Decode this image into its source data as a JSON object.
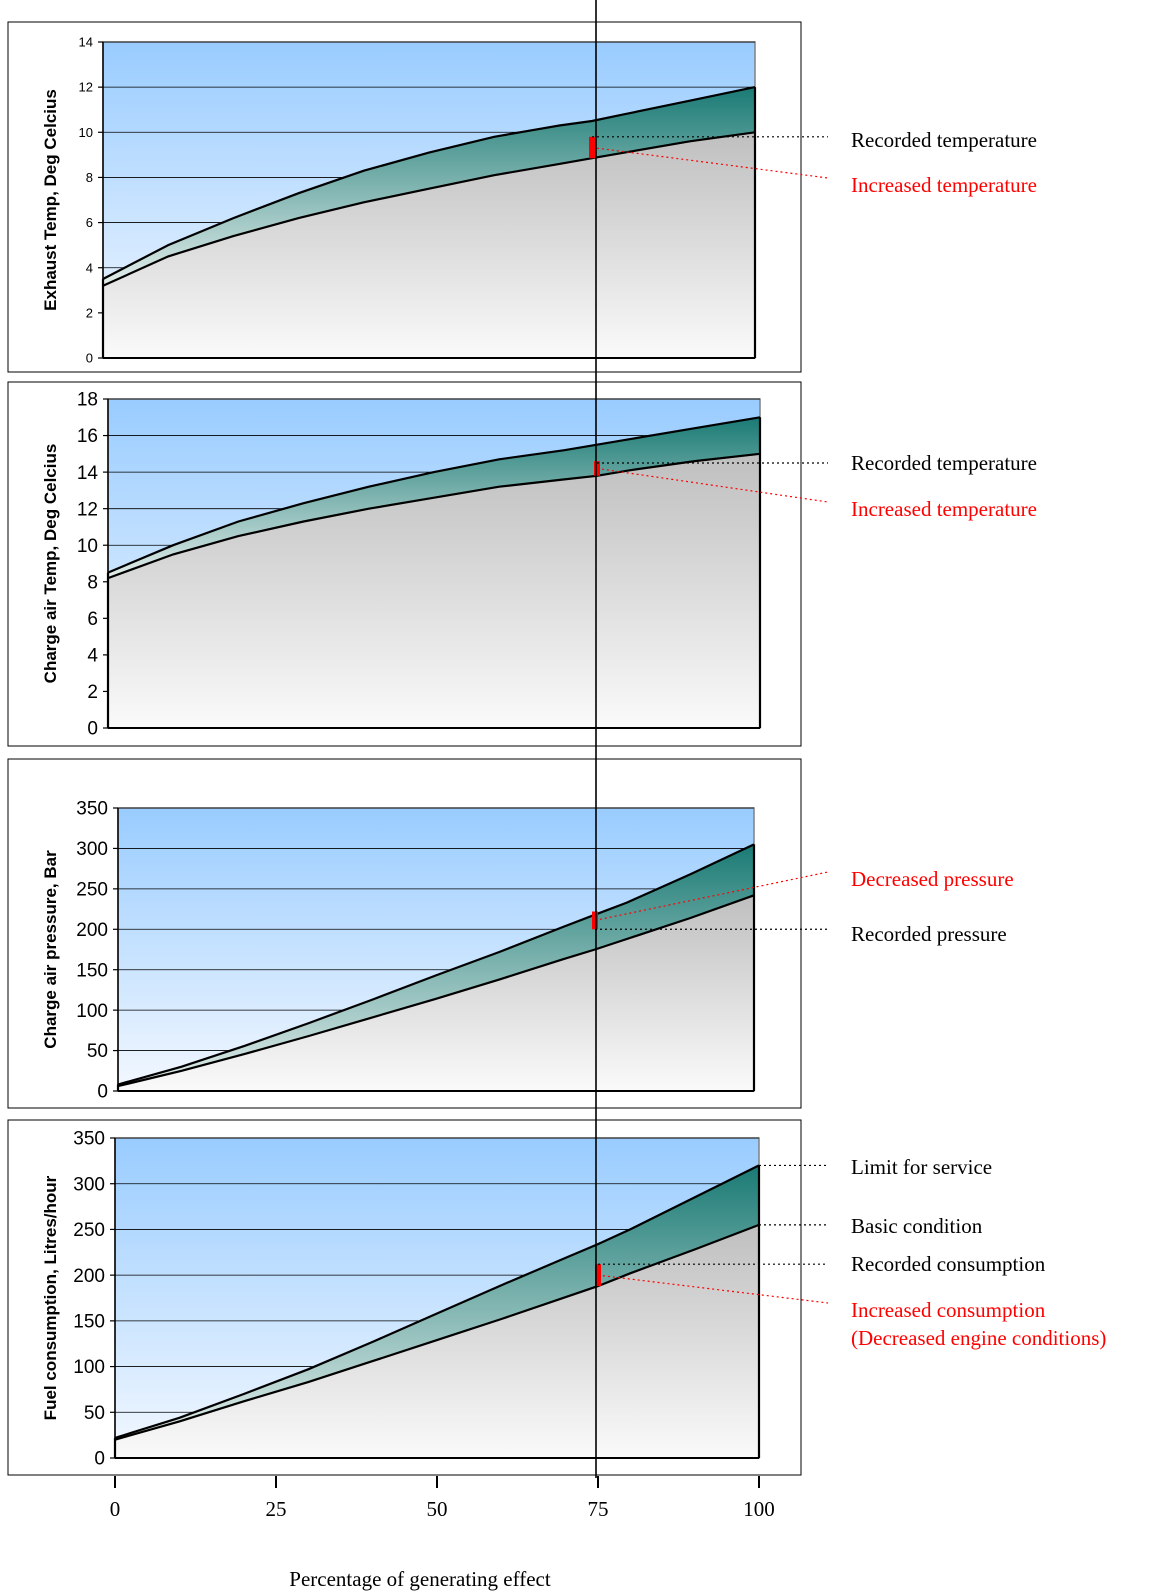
{
  "colors": {
    "sky_top": "#99CCFF",
    "sky_bottom": "#F3F8FF",
    "band_top": "#1A7A74",
    "band_bottom": "#E4EEEC",
    "base_top": "#BFBFBF",
    "base_bottom": "#FAFAFA",
    "marker": "#FF0000",
    "red_text": "#FF0000",
    "black_text": "#000000"
  },
  "chart_data": [
    {
      "type": "area",
      "ylabel": "Exhaust Temp, Deg Celcius",
      "ylim": [
        0,
        14
      ],
      "yticks": [
        0,
        2,
        4,
        6,
        8,
        10,
        12,
        14
      ],
      "x": [
        0,
        10,
        20,
        30,
        40,
        50,
        60,
        70,
        75,
        80,
        90,
        100
      ],
      "series": [
        {
          "values": [
            3.2,
            4.5,
            5.4,
            6.2,
            6.9,
            7.5,
            8.1,
            8.6,
            8.85,
            9.1,
            9.6,
            10.0
          ]
        },
        {
          "values": [
            3.5,
            5.0,
            6.2,
            7.3,
            8.3,
            9.1,
            9.8,
            10.3,
            10.5,
            10.8,
            11.4,
            12.0
          ]
        }
      ],
      "marker": {
        "x": 75,
        "y_from": 8.85,
        "y_to": 9.8
      },
      "annotations": [
        {
          "text": "Recorded temperature",
          "color": "black",
          "y": 9.8
        },
        {
          "text": "Increased temperature",
          "color": "red",
          "y": 9.3
        }
      ]
    },
    {
      "type": "area",
      "ylabel": "Charge air Temp, Deg Celcius",
      "ylim": [
        0,
        18
      ],
      "yticks": [
        0,
        2,
        4,
        6,
        8,
        10,
        12,
        14,
        16,
        18
      ],
      "x": [
        0,
        10,
        20,
        30,
        40,
        50,
        60,
        70,
        75,
        80,
        90,
        100
      ],
      "series": [
        {
          "values": [
            8.2,
            9.5,
            10.5,
            11.3,
            12.0,
            12.6,
            13.2,
            13.6,
            13.8,
            14.1,
            14.6,
            15.0
          ]
        },
        {
          "values": [
            8.5,
            10.0,
            11.3,
            12.3,
            13.2,
            14.0,
            14.7,
            15.2,
            15.5,
            15.8,
            16.4,
            17.0
          ]
        }
      ],
      "marker": {
        "x": 75,
        "y_from": 13.8,
        "y_to": 14.6
      },
      "annotations": [
        {
          "text": "Recorded temperature",
          "color": "black",
          "y": 14.5
        },
        {
          "text": "Increased temperature",
          "color": "red",
          "y": 14.1
        }
      ]
    },
    {
      "type": "area",
      "ylabel": "Charge air pressure, Bar",
      "ylim": [
        0,
        350
      ],
      "yticks": [
        0,
        50,
        100,
        150,
        200,
        250,
        300,
        350
      ],
      "x": [
        0,
        10,
        20,
        30,
        40,
        50,
        60,
        70,
        75,
        80,
        90,
        100
      ],
      "series": [
        {
          "values": [
            6,
            25,
            46,
            68,
            91,
            114,
            138,
            163,
            175,
            188,
            214,
            242
          ]
        },
        {
          "values": [
            8,
            30,
            56,
            84,
            113,
            143,
            172,
            203,
            218,
            233,
            268,
            305
          ]
        }
      ],
      "marker": {
        "x": 75,
        "y_from": 200,
        "y_to": 222
      },
      "annotations": [
        {
          "text": "Decreased pressure",
          "color": "red",
          "y": 213
        },
        {
          "text": "Recorded pressure",
          "color": "black",
          "y": 200
        }
      ]
    },
    {
      "type": "area",
      "ylabel": "Fuel consumption, Litres/hour",
      "ylim": [
        0,
        350
      ],
      "yticks": [
        0,
        50,
        100,
        150,
        200,
        250,
        300,
        350
      ],
      "x": [
        0,
        10,
        20,
        30,
        40,
        50,
        60,
        70,
        75,
        80,
        90,
        100
      ],
      "xticks": [
        0,
        25,
        50,
        75,
        100
      ],
      "xlabel": "Percentage of generating effect",
      "series": [
        {
          "name": "Basic condition",
          "values": [
            20,
            40,
            62,
            83,
            106,
            129,
            152,
            176,
            188,
            202,
            228,
            255
          ]
        },
        {
          "name": "Limit for service",
          "values": [
            22,
            44,
            70,
            97,
            127,
            158,
            189,
            219,
            234,
            250,
            285,
            320
          ]
        }
      ],
      "marker": {
        "x": 75,
        "y_from": 188,
        "y_to": 212
      },
      "annotations": [
        {
          "text": "Limit for service",
          "color": "black",
          "y": 320
        },
        {
          "text": "Basic condition",
          "color": "black",
          "y": 255
        },
        {
          "text": "Recorded consumption",
          "color": "black",
          "y": 212
        },
        {
          "text": "Increased consumption",
          "text2": "(Decreased engine conditions)",
          "color": "red",
          "y": 200
        }
      ]
    }
  ]
}
